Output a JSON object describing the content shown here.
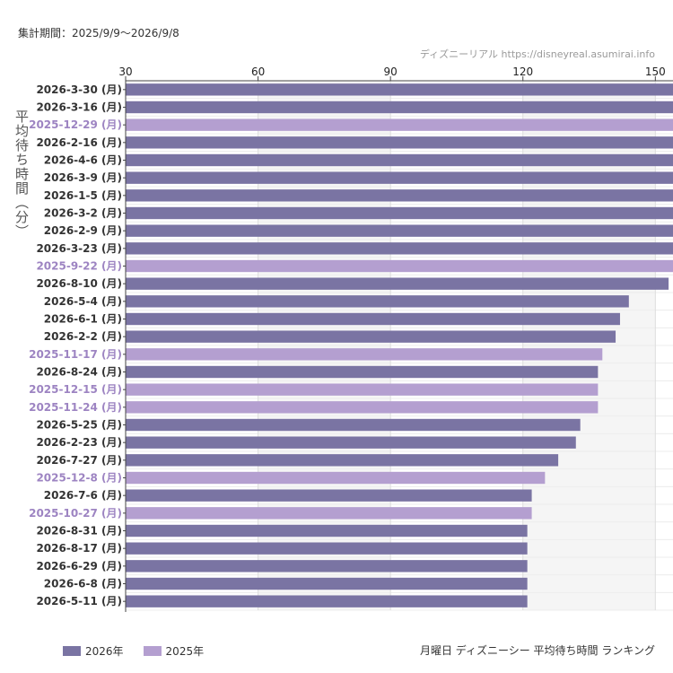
{
  "header": {
    "period": "集計期間：2025/9/9〜2026/9/8",
    "watermark": "ディズニーリアル https://disneyreal.asumirai.info"
  },
  "footer": {
    "caption": "月曜日 ディズニーシー 平均待ち時間 ランキング"
  },
  "colors": {
    "y2026": "#7a74a3",
    "y2025": "#b49fd0",
    "band": "#f5f5f5",
    "grid": "#dddddd"
  },
  "chart_data": {
    "type": "bar",
    "orientation": "horizontal",
    "ylabel": "平均待ち時間（分）",
    "xlim": [
      30,
      154
    ],
    "xticks": [
      30,
      60,
      90,
      120,
      150
    ],
    "legend": [
      {
        "name": "2026年",
        "color": "#7a74a3"
      },
      {
        "name": "2025年",
        "color": "#b49fd0"
      }
    ],
    "legend_position": "bottom-left",
    "grid": true,
    "bars": [
      {
        "label": "2026-3-30 (月)",
        "value": 160,
        "year": "2026年"
      },
      {
        "label": "2026-3-16 (月)",
        "value": 160,
        "year": "2026年"
      },
      {
        "label": "2025-12-29 (月)",
        "value": 160,
        "year": "2025年"
      },
      {
        "label": "2026-2-16 (月)",
        "value": 160,
        "year": "2026年"
      },
      {
        "label": "2026-4-6 (月)",
        "value": 160,
        "year": "2026年"
      },
      {
        "label": "2026-3-9 (月)",
        "value": 160,
        "year": "2026年"
      },
      {
        "label": "2026-1-5 (月)",
        "value": 160,
        "year": "2026年"
      },
      {
        "label": "2026-3-2 (月)",
        "value": 160,
        "year": "2026年"
      },
      {
        "label": "2026-2-9 (月)",
        "value": 160,
        "year": "2026年"
      },
      {
        "label": "2026-3-23 (月)",
        "value": 160,
        "year": "2026年"
      },
      {
        "label": "2025-9-22 (月)",
        "value": 160,
        "year": "2025年"
      },
      {
        "label": "2026-8-10 (月)",
        "value": 153,
        "year": "2026年"
      },
      {
        "label": "2026-5-4 (月)",
        "value": 144,
        "year": "2026年"
      },
      {
        "label": "2026-6-1 (月)",
        "value": 142,
        "year": "2026年"
      },
      {
        "label": "2026-2-2 (月)",
        "value": 141,
        "year": "2026年"
      },
      {
        "label": "2025-11-17 (月)",
        "value": 138,
        "year": "2025年"
      },
      {
        "label": "2026-8-24 (月)",
        "value": 137,
        "year": "2026年"
      },
      {
        "label": "2025-12-15 (月)",
        "value": 137,
        "year": "2025年"
      },
      {
        "label": "2025-11-24 (月)",
        "value": 137,
        "year": "2025年"
      },
      {
        "label": "2026-5-25 (月)",
        "value": 133,
        "year": "2026年"
      },
      {
        "label": "2026-2-23 (月)",
        "value": 132,
        "year": "2026年"
      },
      {
        "label": "2026-7-27 (月)",
        "value": 128,
        "year": "2026年"
      },
      {
        "label": "2025-12-8 (月)",
        "value": 125,
        "year": "2025年"
      },
      {
        "label": "2026-7-6 (月)",
        "value": 122,
        "year": "2026年"
      },
      {
        "label": "2025-10-27 (月)",
        "value": 122,
        "year": "2025年"
      },
      {
        "label": "2026-8-31 (月)",
        "value": 121,
        "year": "2026年"
      },
      {
        "label": "2026-8-17 (月)",
        "value": 121,
        "year": "2026年"
      },
      {
        "label": "2026-6-29 (月)",
        "value": 121,
        "year": "2026年"
      },
      {
        "label": "2026-6-8 (月)",
        "value": 121,
        "year": "2026年"
      },
      {
        "label": "2026-5-11 (月)",
        "value": 121,
        "year": "2026年"
      }
    ]
  }
}
